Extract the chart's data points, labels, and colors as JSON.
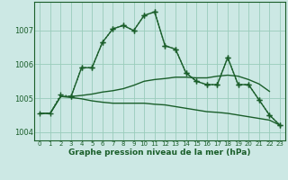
{
  "title": "Graphe pression niveau de la mer (hPa)",
  "background_color": "#cce8e4",
  "grid_color": "#99ccbb",
  "line_color": "#1a5e2a",
  "xlim": [
    -0.5,
    23.5
  ],
  "ylim": [
    1003.75,
    1007.85
  ],
  "yticks": [
    1004,
    1005,
    1006,
    1007
  ],
  "xticks": [
    0,
    1,
    2,
    3,
    4,
    5,
    6,
    7,
    8,
    9,
    10,
    11,
    12,
    13,
    14,
    15,
    16,
    17,
    18,
    19,
    20,
    21,
    22,
    23
  ],
  "series": [
    {
      "x": [
        0,
        1,
        2,
        3,
        4,
        5,
        6,
        7,
        8,
        9,
        10,
        11,
        12,
        13,
        14,
        15,
        16,
        17,
        18,
        19,
        20,
        21,
        22,
        23
      ],
      "y": [
        1004.55,
        1004.55,
        1005.1,
        1005.05,
        1005.9,
        1005.9,
        1006.65,
        1007.05,
        1007.15,
        1007.0,
        1007.45,
        1007.55,
        1006.55,
        1006.45,
        1005.75,
        1005.5,
        1005.4,
        1005.4,
        1006.2,
        1005.4,
        1005.4,
        1004.95,
        1004.5,
        1004.2
      ],
      "marker": "+",
      "linestyle": "dotted",
      "linewidth": 1.0,
      "markersize": 4
    },
    {
      "x": [
        3,
        4,
        5,
        6,
        7,
        8,
        9,
        10,
        11,
        12,
        13,
        14,
        15,
        16,
        17,
        18,
        19,
        20,
        21,
        22,
        23
      ],
      "y": [
        1005.05,
        1005.9,
        1005.9,
        1006.65,
        1007.05,
        1007.15,
        1007.0,
        1007.45,
        1007.55,
        1006.55,
        1006.45,
        1005.75,
        1005.5,
        1005.4,
        1005.4,
        1006.2,
        1005.4,
        1005.4,
        1004.95,
        1004.5,
        1004.2
      ],
      "marker": "+",
      "linestyle": "solid",
      "linewidth": 1.0,
      "markersize": 4
    },
    {
      "x": [
        0,
        1,
        2,
        3,
        4,
        5,
        6,
        7,
        8,
        9,
        10,
        11,
        12,
        13,
        14,
        15,
        16,
        17,
        18,
        19,
        20,
        21,
        22
      ],
      "y": [
        1004.55,
        1004.55,
        1005.05,
        1005.05,
        1005.08,
        1005.12,
        1005.18,
        1005.22,
        1005.28,
        1005.38,
        1005.5,
        1005.55,
        1005.58,
        1005.62,
        1005.62,
        1005.6,
        1005.6,
        1005.65,
        1005.68,
        1005.65,
        1005.55,
        1005.42,
        1005.2
      ],
      "marker": null,
      "linestyle": "solid",
      "linewidth": 1.0,
      "markersize": 0
    },
    {
      "x": [
        0,
        1,
        2,
        3,
        4,
        5,
        6,
        7,
        8,
        9,
        10,
        11,
        12,
        13,
        14,
        15,
        16,
        17,
        18,
        19,
        20,
        21,
        22,
        23
      ],
      "y": [
        1004.55,
        1004.55,
        1005.05,
        1005.02,
        1004.98,
        1004.92,
        1004.88,
        1004.85,
        1004.85,
        1004.85,
        1004.85,
        1004.82,
        1004.8,
        1004.75,
        1004.7,
        1004.65,
        1004.6,
        1004.58,
        1004.55,
        1004.5,
        1004.45,
        1004.4,
        1004.35,
        1004.2
      ],
      "marker": null,
      "linestyle": "solid",
      "linewidth": 1.0,
      "markersize": 0
    }
  ]
}
